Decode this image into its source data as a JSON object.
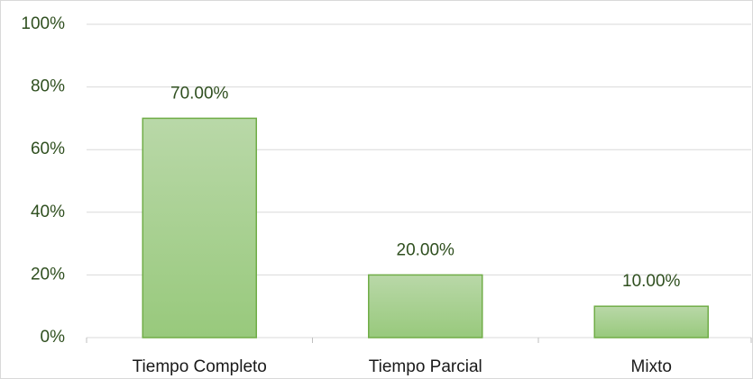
{
  "chart_data": {
    "type": "bar",
    "categories": [
      "Tiempo Completo",
      "Tiempo Parcial",
      "Mixto"
    ],
    "values": [
      70,
      20,
      10
    ],
    "value_labels": [
      "70.00%",
      "20.00%",
      "10.00%"
    ],
    "color": "#70ad47",
    "ylim": [
      0,
      100
    ],
    "yticks": [
      {
        "value": 0,
        "label": "0%"
      },
      {
        "value": 20,
        "label": "20%"
      },
      {
        "value": 40,
        "label": "40%"
      },
      {
        "value": 60,
        "label": "60%"
      },
      {
        "value": 80,
        "label": "80%"
      },
      {
        "value": 100,
        "label": "100%"
      }
    ],
    "grid": true
  }
}
